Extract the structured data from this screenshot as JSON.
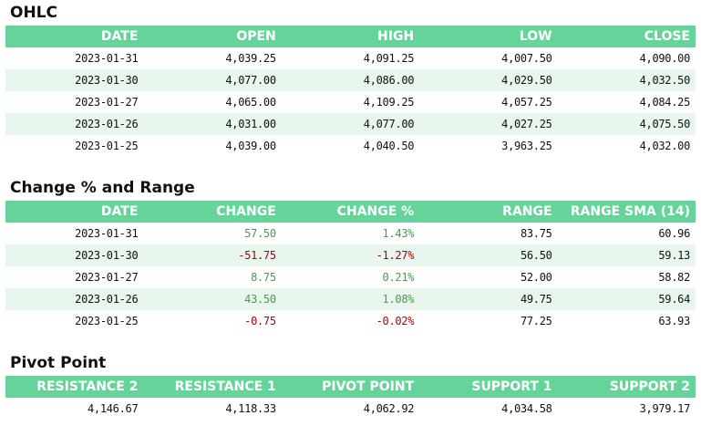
{
  "ohlc": {
    "title": "OHLC",
    "headers": [
      "DATE",
      "OPEN",
      "HIGH",
      "LOW",
      "CLOSE"
    ],
    "rows": [
      [
        "2023-01-31",
        "4,039.25",
        "4,091.25",
        "4,007.50",
        "4,090.00"
      ],
      [
        "2023-01-30",
        "4,077.00",
        "4,086.00",
        "4,029.50",
        "4,032.50"
      ],
      [
        "2023-01-27",
        "4,065.00",
        "4,109.25",
        "4,057.25",
        "4,084.25"
      ],
      [
        "2023-01-26",
        "4,031.00",
        "4,077.00",
        "4,027.25",
        "4,075.50"
      ],
      [
        "2023-01-25",
        "4,039.00",
        "4,040.50",
        "3,963.25",
        "4,032.00"
      ]
    ]
  },
  "change": {
    "title": "Change % and Range",
    "headers": [
      "DATE",
      "CHANGE",
      "CHANGE %",
      "RANGE",
      "RANGE SMA (14)"
    ],
    "rows": [
      [
        "2023-01-31",
        "57.50",
        "1.43%",
        "83.75",
        "60.96"
      ],
      [
        "2023-01-30",
        "-51.75",
        "-1.27%",
        "56.50",
        "59.13"
      ],
      [
        "2023-01-27",
        "8.75",
        "0.21%",
        "52.00",
        "58.82"
      ],
      [
        "2023-01-26",
        "43.50",
        "1.08%",
        "49.75",
        "59.64"
      ],
      [
        "2023-01-25",
        "-0.75",
        "-0.02%",
        "77.25",
        "63.93"
      ]
    ],
    "positive_color": "#4a9a4a",
    "negative_color": "#b00000"
  },
  "pivot": {
    "title": "Pivot Point",
    "headers": [
      "RESISTANCE 2",
      "RESISTANCE 1",
      "PIVOT POINT",
      "SUPPORT 1",
      "SUPPORT 2"
    ],
    "values": [
      "4,146.67",
      "4,118.33",
      "4,062.92",
      "4,034.58",
      "3,979.17"
    ]
  },
  "colors": {
    "header_bg": "#66d49a",
    "alt_row_bg": "#e8f6ee"
  }
}
